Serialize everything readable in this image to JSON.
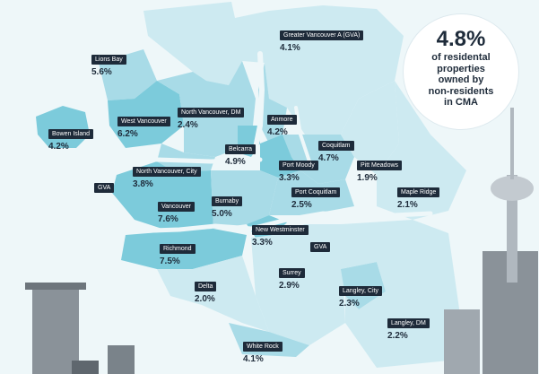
{
  "headline": {
    "percent": "4.8%",
    "text_lines": [
      "of residental",
      "properties",
      "owned by",
      "non-residents",
      "in CMA"
    ]
  },
  "colors": {
    "water": "#eef7f9",
    "land_light": "#cdeaf1",
    "land_mid": "#a8dbe7",
    "land_dark": "#7ccbdb",
    "label_bg": "#1e2b3a",
    "building": "#8a9299"
  },
  "regions": [
    {
      "id": "greater-vancouver-a",
      "name": "Greater Vancouver A (GVA)",
      "value": "4.1%"
    },
    {
      "id": "lions-bay",
      "name": "Lions Bay",
      "value": "5.6%"
    },
    {
      "id": "north-vancouver-dm",
      "name": "North Vancouver, DM",
      "value": "2.4%"
    },
    {
      "id": "anmore",
      "name": "Anmore",
      "value": "4.2%"
    },
    {
      "id": "bowen-island",
      "name": "Bowen Island",
      "value": "4.2%"
    },
    {
      "id": "west-vancouver",
      "name": "West Vancouver",
      "value": "6.2%"
    },
    {
      "id": "belcarra",
      "name": "Belcarra",
      "value": "4.9%"
    },
    {
      "id": "coquitlam",
      "name": "Coquitlam",
      "value": "4.7%"
    },
    {
      "id": "port-moody",
      "name": "Port Moody",
      "value": "3.3%"
    },
    {
      "id": "north-vancouver-city",
      "name": "North Vancouver, City",
      "value": "3.8%"
    },
    {
      "id": "pitt-meadows",
      "name": "Pitt Meadows",
      "value": "1.9%"
    },
    {
      "id": "gva-west",
      "name": "GVA",
      "value": ""
    },
    {
      "id": "port-coquitlam",
      "name": "Port Coquitlam",
      "value": "2.5%"
    },
    {
      "id": "maple-ridge",
      "name": "Maple Ridge",
      "value": "2.1%"
    },
    {
      "id": "vancouver",
      "name": "Vancouver",
      "value": "7.6%"
    },
    {
      "id": "burnaby",
      "name": "Burnaby",
      "value": "5.0%"
    },
    {
      "id": "new-westminster",
      "name": "New Westminster",
      "value": "3.3%"
    },
    {
      "id": "gva-south",
      "name": "GVA",
      "value": ""
    },
    {
      "id": "richmond",
      "name": "Richmond",
      "value": "7.5%"
    },
    {
      "id": "surrey",
      "name": "Surrey",
      "value": "2.9%"
    },
    {
      "id": "delta",
      "name": "Delta",
      "value": "2.0%"
    },
    {
      "id": "langley-city",
      "name": "Langley, City",
      "value": "2.3%"
    },
    {
      "id": "langley-dm",
      "name": "Langley, DM",
      "value": "2.2%"
    },
    {
      "id": "white-rock",
      "name": "White Rock",
      "value": "4.1%"
    }
  ]
}
